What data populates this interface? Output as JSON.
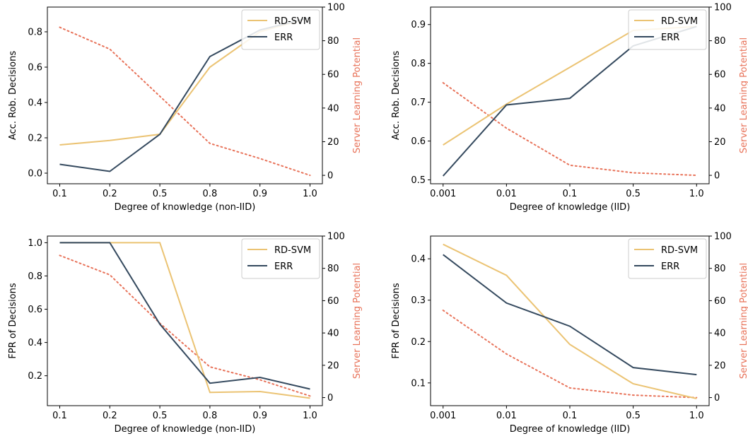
{
  "colors": {
    "rdsvm": "#ebc373",
    "err": "#34495e",
    "potential": "#e8735a",
    "axis": "#000000"
  },
  "chart_data": [
    {
      "type": "line",
      "xlabel": "Degree of knowledge (non-IID)",
      "ylabel": "Acc. Rob. Decisions",
      "y2label": "Server Learning Potential",
      "categories": [
        "0.1",
        "0.2",
        "0.5",
        "0.8",
        "0.9",
        "1.0"
      ],
      "ylim": [
        -0.06,
        0.94
      ],
      "yticks": [
        0.0,
        0.2,
        0.4,
        0.6,
        0.8
      ],
      "y2lim": [
        -5,
        100
      ],
      "y2ticks": [
        0,
        20,
        40,
        60,
        80,
        100
      ],
      "legend": "top-right",
      "series": [
        {
          "name": "RD-SVM",
          "axis": "left",
          "values": [
            0.16,
            0.185,
            0.22,
            0.6,
            0.8,
            0.88
          ]
        },
        {
          "name": "ERR",
          "axis": "left",
          "values": [
            0.05,
            0.01,
            0.22,
            0.66,
            0.81,
            0.88
          ]
        },
        {
          "axis": "right",
          "style": "dotted",
          "values": [
            88,
            75,
            47,
            19,
            10,
            0
          ]
        }
      ]
    },
    {
      "type": "line",
      "xlabel": "Degree of knowledge (IID)",
      "ylabel": "Acc. Rob. Decisions",
      "y2label": "Server Learning Potential",
      "categories": [
        "0.001",
        "0.01",
        "0.1",
        "0.5",
        "1.0"
      ],
      "ylim": [
        0.49,
        0.945
      ],
      "yticks": [
        0.5,
        0.6,
        0.7,
        0.8,
        0.9
      ],
      "y2lim": [
        -5,
        100
      ],
      "y2ticks": [
        0,
        20,
        40,
        60,
        80,
        100
      ],
      "legend": "top-right",
      "series": [
        {
          "name": "RD-SVM",
          "axis": "left",
          "values": [
            0.59,
            0.695,
            0.79,
            0.885,
            0.895
          ]
        },
        {
          "name": "ERR",
          "axis": "left",
          "values": [
            0.51,
            0.693,
            0.71,
            0.845,
            0.895
          ]
        },
        {
          "axis": "right",
          "style": "dotted",
          "values": [
            55,
            28,
            6,
            1.5,
            0
          ]
        }
      ]
    },
    {
      "type": "line",
      "xlabel": "Degree of knowledge (non-IID)",
      "ylabel": "FPR of Decisions",
      "y2label": "Server Learning Potential",
      "categories": [
        "0.1",
        "0.2",
        "0.5",
        "0.8",
        "0.9",
        "1.0"
      ],
      "ylim": [
        0.02,
        1.04
      ],
      "yticks": [
        0.2,
        0.4,
        0.6,
        0.8,
        1.0
      ],
      "y2lim": [
        -5,
        100
      ],
      "y2ticks": [
        0,
        20,
        40,
        60,
        80,
        100
      ],
      "legend": "top-right",
      "series": [
        {
          "name": "RD-SVM",
          "axis": "left",
          "values": [
            1.0,
            1.0,
            1.0,
            0.1,
            0.105,
            0.065
          ]
        },
        {
          "name": "ERR",
          "axis": "left",
          "values": [
            1.0,
            1.0,
            0.51,
            0.155,
            0.19,
            0.12
          ]
        },
        {
          "axis": "right",
          "style": "dotted",
          "values": [
            88,
            76,
            46,
            19,
            11,
            1
          ]
        }
      ]
    },
    {
      "type": "line",
      "xlabel": "Degree of knowledge (IID)",
      "ylabel": "FPR of Decisions",
      "y2label": "Server Learning Potential",
      "categories": [
        "0.001",
        "0.01",
        "0.1",
        "0.5",
        "1.0"
      ],
      "ylim": [
        0.045,
        0.455
      ],
      "yticks": [
        0.1,
        0.2,
        0.3,
        0.4
      ],
      "y2lim": [
        -5,
        100
      ],
      "y2ticks": [
        0,
        20,
        40,
        60,
        80,
        100
      ],
      "legend": "top-right",
      "series": [
        {
          "name": "RD-SVM",
          "axis": "left",
          "values": [
            0.435,
            0.36,
            0.193,
            0.098,
            0.062
          ]
        },
        {
          "name": "ERR",
          "axis": "left",
          "values": [
            0.41,
            0.293,
            0.237,
            0.137,
            0.12
          ]
        },
        {
          "axis": "right",
          "style": "dotted",
          "values": [
            54,
            27,
            6,
            1.5,
            0
          ]
        }
      ]
    }
  ]
}
